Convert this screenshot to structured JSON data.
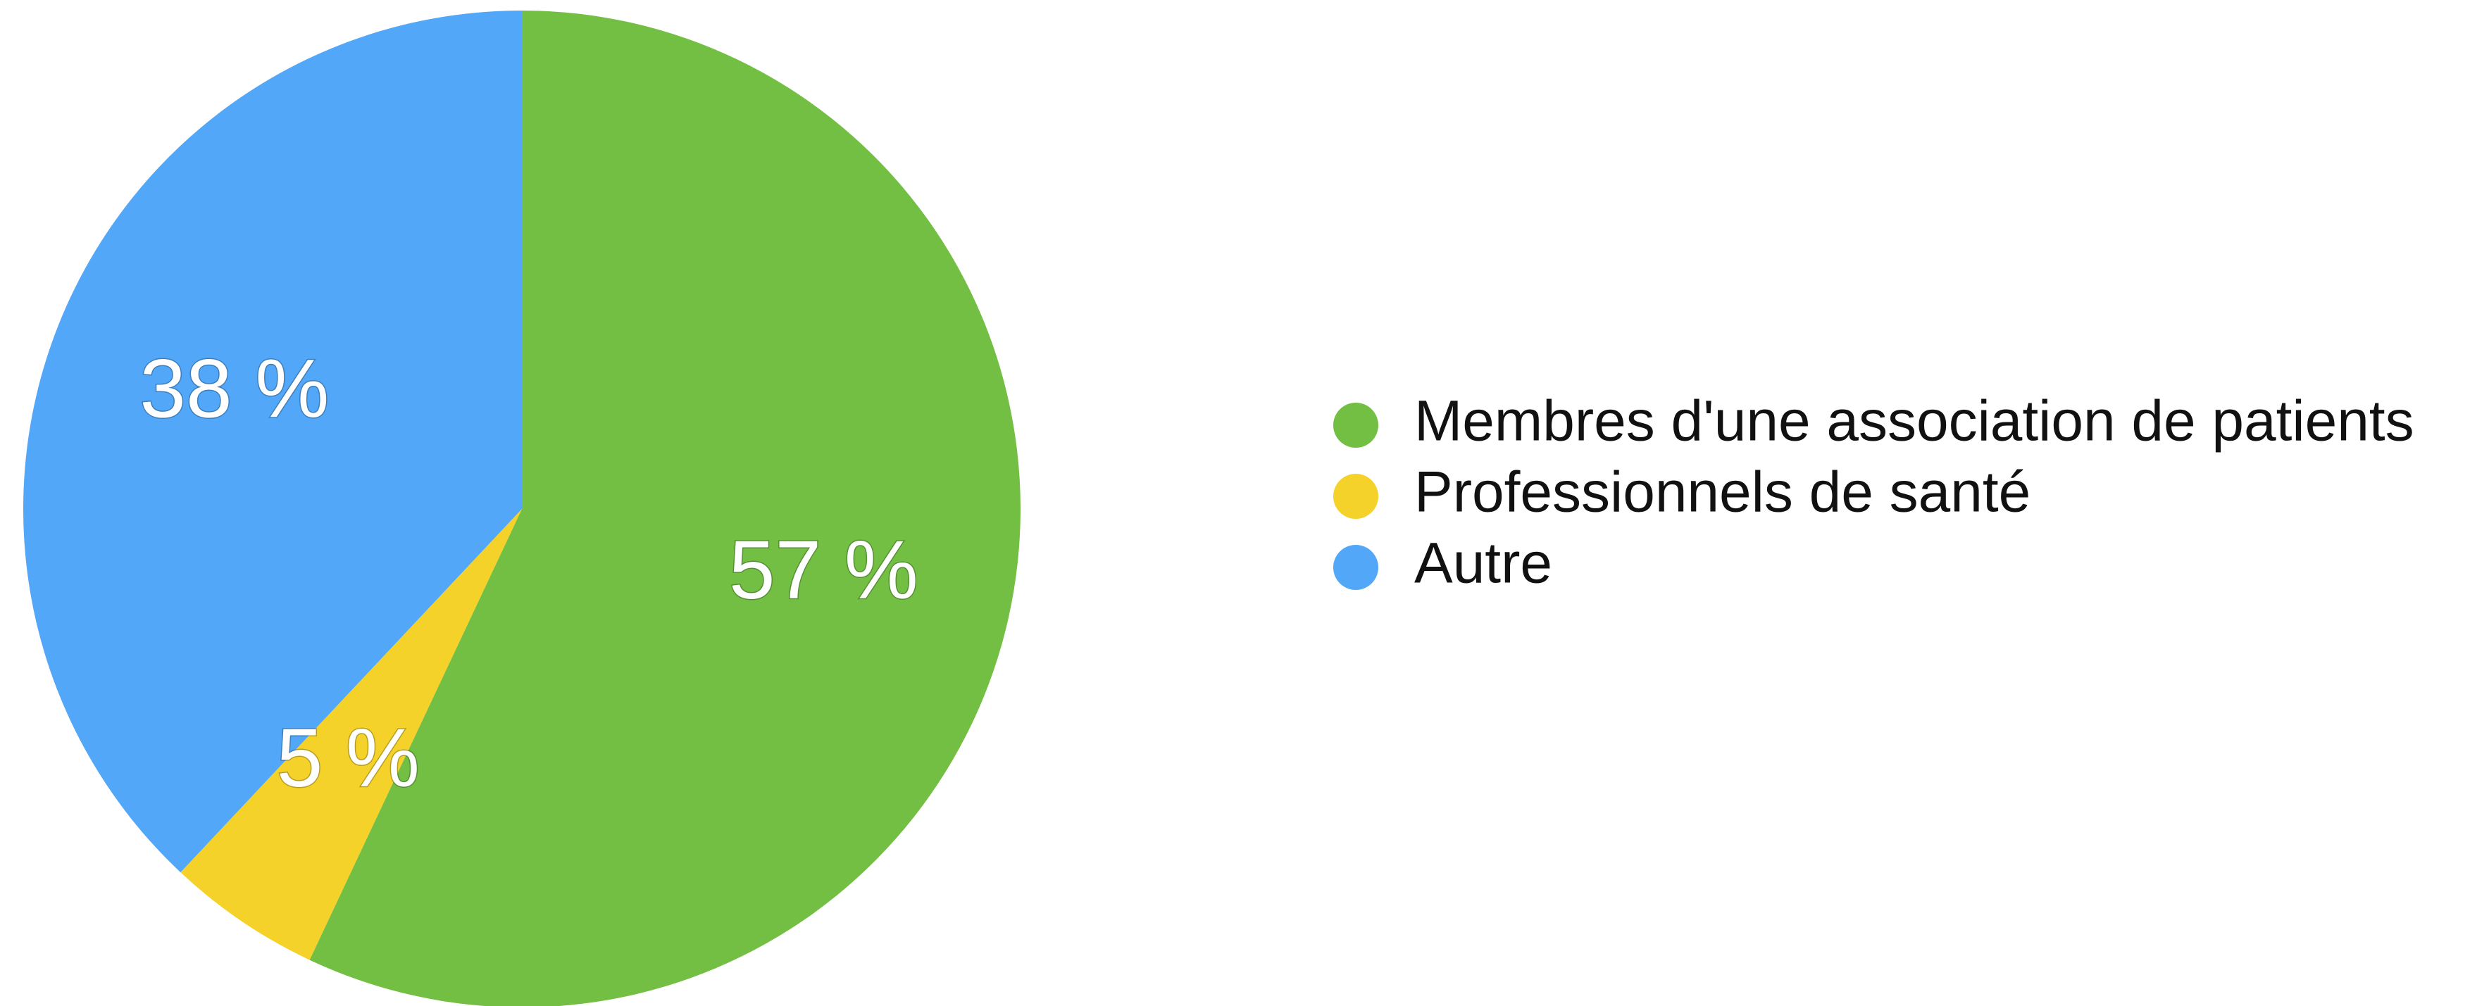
{
  "chart_data": {
    "type": "pie",
    "categories": [
      "Membres d'une association de patients",
      "Professionnels de santé",
      "Autre"
    ],
    "values": [
      57,
      5,
      38
    ],
    "value_labels": [
      "57 %",
      "5 %",
      "38 %"
    ],
    "colors": [
      "#72bf44",
      "#f5d22a",
      "#52a7f8"
    ],
    "legend": "right"
  }
}
